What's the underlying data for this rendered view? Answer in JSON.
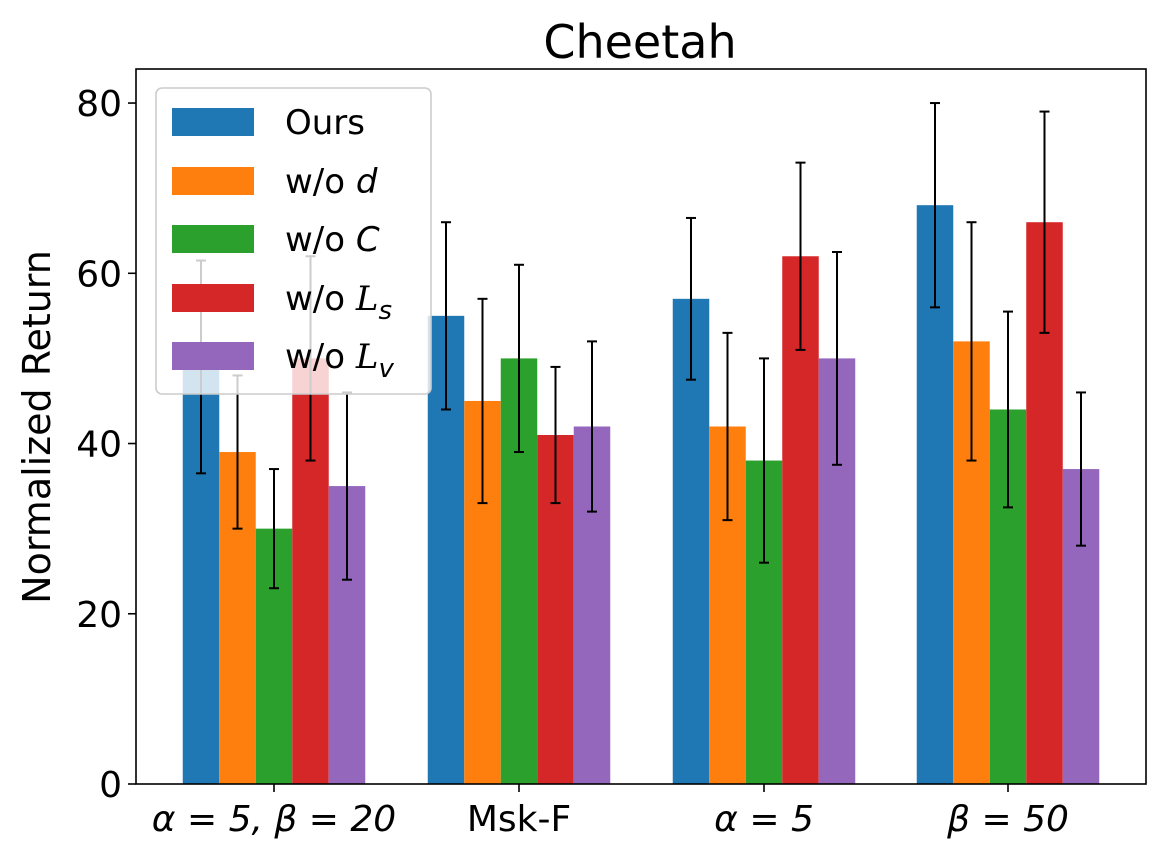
{
  "chart_data": {
    "type": "bar",
    "title": "Cheetah",
    "xlabel": "",
    "ylabel": "Normalized Return",
    "ylim": [
      0,
      84
    ],
    "yticks": [
      0,
      20,
      40,
      60,
      80
    ],
    "ytick_labels": [
      "0",
      "20",
      "40",
      "60",
      "80"
    ],
    "categories": [
      "α = 5, β = 20",
      "Msk-F",
      "α = 5",
      "β = 50"
    ],
    "legend_position": "top-left",
    "series": [
      {
        "name": "Ours",
        "color": "#1f77b4",
        "values": [
          49,
          55,
          57,
          68
        ],
        "error": [
          12.5,
          11,
          9.5,
          12
        ]
      },
      {
        "name": "w/o d",
        "color": "#ff7f0e",
        "values": [
          39,
          45,
          42,
          52
        ],
        "error": [
          9,
          12,
          11,
          14
        ]
      },
      {
        "name": "w/o C",
        "color": "#2ca02c",
        "values": [
          30,
          50,
          38,
          44
        ],
        "error": [
          7,
          11,
          12,
          11.5
        ]
      },
      {
        "name": "w/o Ls",
        "color": "#d62728",
        "values": [
          50,
          41,
          62,
          66
        ],
        "error": [
          12,
          8,
          11,
          13
        ]
      },
      {
        "name": "w/o Lv",
        "color": "#9467bd",
        "values": [
          35,
          42,
          50,
          37
        ],
        "error": [
          11,
          10,
          12.5,
          9
        ]
      }
    ]
  }
}
